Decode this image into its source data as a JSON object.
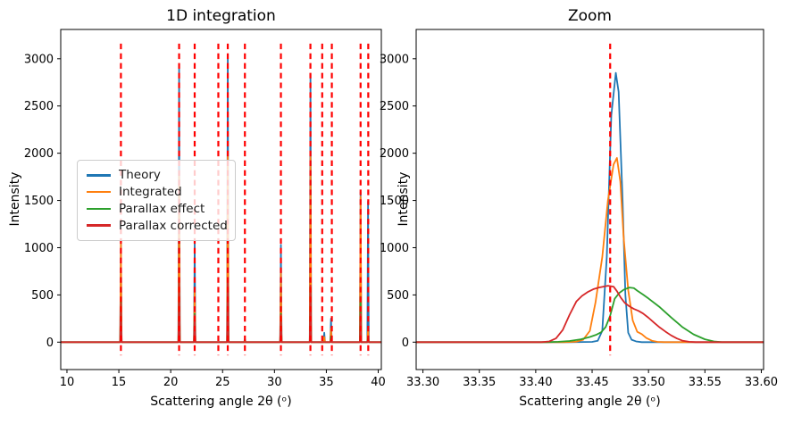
{
  "chart_data": [
    {
      "type": "line",
      "title": "1D integration",
      "xlabel": "Scattering angle 2θ (ᵒ)",
      "ylabel": "Intensity",
      "xlim": [
        9.4,
        40.3
      ],
      "ylim": [
        -290,
        3310
      ],
      "xticks": [
        10,
        15,
        20,
        25,
        30,
        35,
        40
      ],
      "xtick_labels": [
        "10",
        "15",
        "20",
        "25",
        "30",
        "35",
        "40"
      ],
      "yticks": [
        0,
        500,
        1000,
        1500,
        2000,
        2500,
        3000
      ],
      "ytick_labels": [
        "0",
        "500",
        "1000",
        "1500",
        "2000",
        "2500",
        "3000"
      ],
      "grid": false,
      "legend_position": "center left",
      "vlines": {
        "x": [
          15.2,
          20.81,
          22.31,
          24.59,
          25.5,
          27.15,
          30.62,
          33.465,
          34.6,
          35.53,
          38.3,
          39.04
        ],
        "color": "#ff0000",
        "linestyle": "dashed",
        "y_span": [
          -140,
          3160
        ]
      },
      "peaks_x": [
        15.2,
        20.81,
        22.31,
        25.5,
        27.15,
        30.62,
        33.47,
        34.8,
        35.45,
        38.3,
        39.02
      ],
      "peak_halfwidth_deg": 0.07,
      "series": [
        {
          "name": "Theory",
          "color": "#1f77b4",
          "heights": [
            1090,
            2915,
            1050,
            3010,
            35,
            1030,
            2840,
            100,
            250,
            1590,
            1490
          ]
        },
        {
          "name": "Integrated",
          "color": "#ff7f0e",
          "heights": [
            1085,
            1800,
            570,
            1990,
            20,
            760,
            1960,
            55,
            145,
            1540,
            145
          ]
        },
        {
          "name": "Parallax effect",
          "color": "#2ca02c",
          "heights": [
            440,
            640,
            300,
            675,
            0,
            300,
            580,
            0,
            60,
            480,
            50
          ]
        },
        {
          "name": "Parallax corrected",
          "color": "#d62728",
          "heights": [
            410,
            625,
            285,
            660,
            0,
            286,
            600,
            0,
            30,
            300,
            30
          ]
        }
      ]
    },
    {
      "type": "line",
      "title": "Zoom",
      "xlabel": "Scattering angle 2θ (ᵒ)",
      "ylabel": "Intensity",
      "xlim": [
        33.294,
        33.602
      ],
      "ylim": [
        -290,
        3310
      ],
      "xticks": [
        33.3,
        33.35,
        33.4,
        33.45,
        33.5,
        33.55,
        33.6
      ],
      "xtick_labels": [
        "33.30",
        "33.35",
        "33.40",
        "33.45",
        "33.50",
        "33.55",
        "33.60"
      ],
      "yticks": [
        0,
        500,
        1000,
        1500,
        2000,
        2500,
        3000
      ],
      "ytick_labels": [
        "0",
        "500",
        "1000",
        "1500",
        "2000",
        "2500",
        "3000"
      ],
      "grid": false,
      "vlines": {
        "x": [
          33.466
        ],
        "color": "#ff0000",
        "linestyle": "dashed",
        "y_span": [
          -140,
          3160
        ]
      },
      "series": [
        {
          "name": "Theory",
          "color": "#1f77b4",
          "points": [
            [
              33.294,
              0
            ],
            [
              33.43,
              0
            ],
            [
              33.45,
              3
            ],
            [
              33.455,
              15
            ],
            [
              33.459,
              120
            ],
            [
              33.463,
              900
            ],
            [
              33.467,
              2400
            ],
            [
              33.471,
              2850
            ],
            [
              33.4735,
              2650
            ],
            [
              33.477,
              1500
            ],
            [
              33.4795,
              500
            ],
            [
              33.482,
              100
            ],
            [
              33.485,
              25
            ],
            [
              33.489,
              8
            ],
            [
              33.494,
              0
            ],
            [
              33.602,
              0
            ]
          ]
        },
        {
          "name": "Integrated",
          "color": "#ff7f0e",
          "points": [
            [
              33.294,
              0
            ],
            [
              33.425,
              0
            ],
            [
              33.436,
              5
            ],
            [
              33.442,
              25
            ],
            [
              33.448,
              120
            ],
            [
              33.453,
              420
            ],
            [
              33.459,
              900
            ],
            [
              33.464,
              1500
            ],
            [
              33.469,
              1880
            ],
            [
              33.472,
              1950
            ],
            [
              33.475,
              1700
            ],
            [
              33.478,
              1100
            ],
            [
              33.482,
              550
            ],
            [
              33.486,
              230
            ],
            [
              33.49,
              110
            ],
            [
              33.494,
              85
            ],
            [
              33.498,
              45
            ],
            [
              33.503,
              15
            ],
            [
              33.508,
              3
            ],
            [
              33.514,
              0
            ],
            [
              33.602,
              0
            ]
          ]
        },
        {
          "name": "Parallax effect",
          "color": "#2ca02c",
          "points": [
            [
              33.294,
              0
            ],
            [
              33.41,
              0
            ],
            [
              33.42,
              4
            ],
            [
              33.43,
              12
            ],
            [
              33.44,
              30
            ],
            [
              33.448,
              55
            ],
            [
              33.454,
              80
            ],
            [
              33.458,
              105
            ],
            [
              33.462,
              160
            ],
            [
              33.466,
              280
            ],
            [
              33.47,
              460
            ],
            [
              33.474,
              520
            ],
            [
              33.478,
              555
            ],
            [
              33.483,
              578
            ],
            [
              33.487,
              572
            ],
            [
              33.49,
              545
            ],
            [
              33.495,
              505
            ],
            [
              33.5,
              462
            ],
            [
              33.51,
              370
            ],
            [
              33.52,
              262
            ],
            [
              33.53,
              160
            ],
            [
              33.54,
              82
            ],
            [
              33.55,
              30
            ],
            [
              33.558,
              8
            ],
            [
              33.565,
              0
            ],
            [
              33.602,
              0
            ]
          ]
        },
        {
          "name": "Parallax corrected",
          "color": "#d62728",
          "points": [
            [
              33.294,
              0
            ],
            [
              33.405,
              0
            ],
            [
              33.412,
              8
            ],
            [
              33.418,
              40
            ],
            [
              33.424,
              130
            ],
            [
              33.43,
              290
            ],
            [
              33.436,
              430
            ],
            [
              33.441,
              490
            ],
            [
              33.446,
              530
            ],
            [
              33.451,
              560
            ],
            [
              33.456,
              578
            ],
            [
              33.461,
              590
            ],
            [
              33.464,
              597
            ],
            [
              33.469,
              588
            ],
            [
              33.472,
              540
            ],
            [
              33.4755,
              470
            ],
            [
              33.479,
              415
            ],
            [
              33.483,
              380
            ],
            [
              33.487,
              352
            ],
            [
              33.491,
              332
            ],
            [
              33.495,
              305
            ],
            [
              33.5,
              258
            ],
            [
              33.505,
              205
            ],
            [
              33.51,
              155
            ],
            [
              33.515,
              112
            ],
            [
              33.52,
              72
            ],
            [
              33.525,
              40
            ],
            [
              33.53,
              16
            ],
            [
              33.536,
              4
            ],
            [
              33.542,
              0
            ],
            [
              33.602,
              0
            ]
          ]
        }
      ]
    }
  ],
  "legend": {
    "items": [
      {
        "label": "Theory"
      },
      {
        "label": "Integrated"
      },
      {
        "label": "Parallax effect"
      },
      {
        "label": "Parallax corrected"
      }
    ]
  }
}
